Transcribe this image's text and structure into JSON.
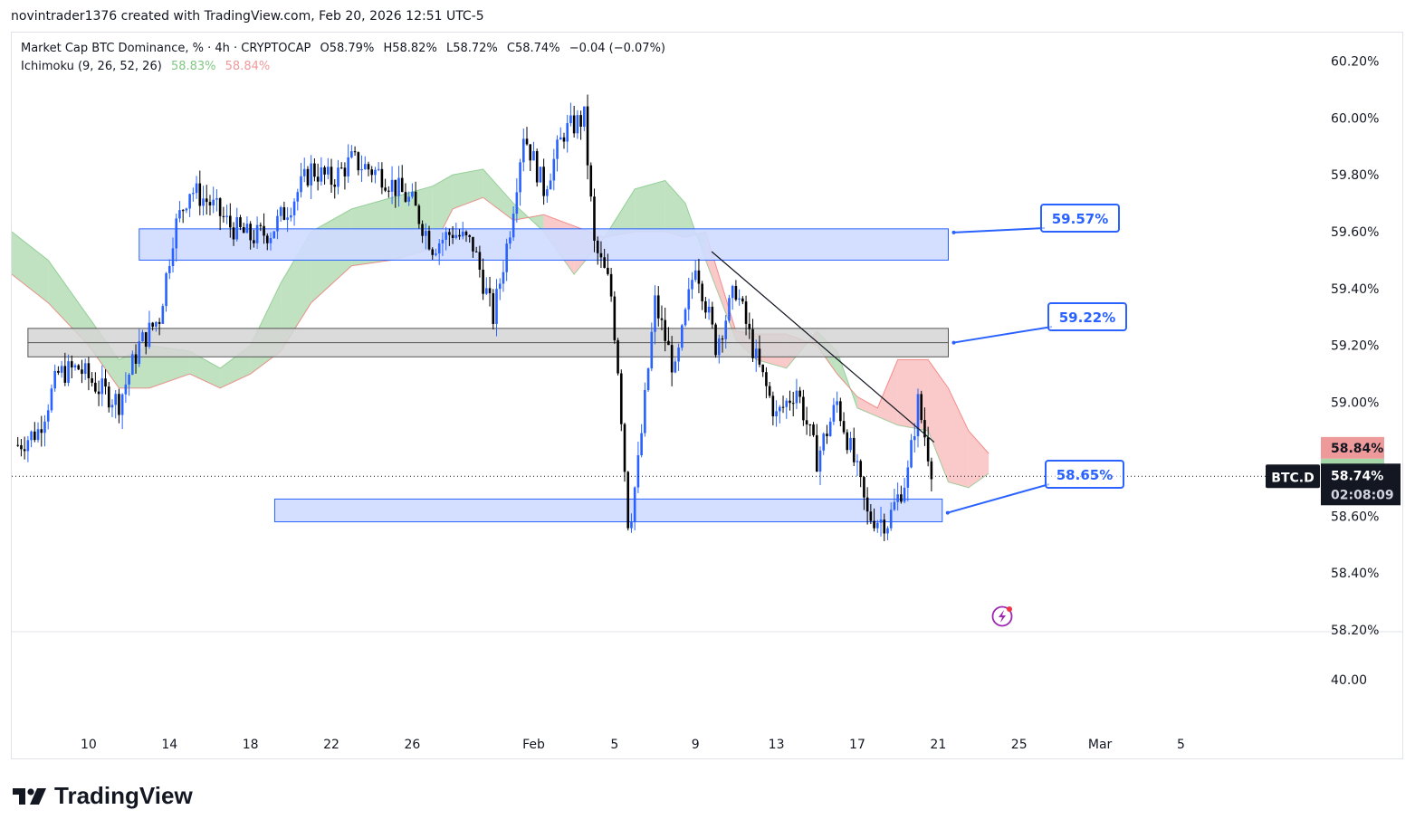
{
  "header": {
    "credit": "novintrader1376 created with TradingView.com, Feb 20, 2026 12:51 UTC-5"
  },
  "legend": {
    "symbol_line": "Market Cap BTC Dominance, % · 4h · CRYPTOCAP",
    "open": "O58.79%",
    "high": "H58.82%",
    "low": "L58.72%",
    "close": "C58.74%",
    "change": "−0.04 (−0.07%)",
    "indicator": "Ichimoku (9, 26, 52, 26)",
    "ich_value_a": "58.83%",
    "ich_value_b": "58.84%"
  },
  "brand": {
    "name": "TradingView"
  },
  "colors": {
    "bull": "#2962ff",
    "bear": "#000000",
    "cloud_bull": "#a5d6a7",
    "cloud_bear": "#f8b4b4",
    "zone_blue": "#cfdcff",
    "zone_gray": "#d5d5d5",
    "accent": "#2962ff"
  },
  "chart_data": {
    "type": "candlestick",
    "title": "Market Cap BTC Dominance, % · 4h · CRYPTOCAP",
    "ylim": [
      58.2,
      60.3
    ],
    "y_ticks": [
      "60.20%",
      "60.00%",
      "59.80%",
      "59.60%",
      "59.40%",
      "59.20%",
      "59.00%",
      "58.60%",
      "58.40%",
      "58.20%"
    ],
    "y_tick_values": [
      60.2,
      60.0,
      59.8,
      59.6,
      59.4,
      59.2,
      59.0,
      58.6,
      58.4,
      58.2
    ],
    "x_ticks": [
      "10",
      "14",
      "18",
      "22",
      "26",
      "Feb",
      "5",
      "9",
      "13",
      "17",
      "21",
      "25",
      "Mar",
      "5"
    ],
    "x_tick_days": [
      9,
      13,
      17,
      21,
      25,
      31,
      35,
      39,
      43,
      47,
      51,
      55,
      59,
      63
    ],
    "x_domain_days": [
      5.2,
      67.5
    ],
    "x_days_note": "days counted from Jan 1, 2026",
    "price_path": [
      [
        5.5,
        58.85
      ],
      [
        6.5,
        58.9
      ],
      [
        7.5,
        59.1
      ],
      [
        8.5,
        59.12
      ],
      [
        9.5,
        59.05
      ],
      [
        10.5,
        59.0
      ],
      [
        11.5,
        59.2
      ],
      [
        12.5,
        59.3
      ],
      [
        13.2,
        59.6
      ],
      [
        14.0,
        59.75
      ],
      [
        15.0,
        59.7
      ],
      [
        16.0,
        59.62
      ],
      [
        17.0,
        59.58
      ],
      [
        18.0,
        59.6
      ],
      [
        19.0,
        59.7
      ],
      [
        20.0,
        59.82
      ],
      [
        21.0,
        59.78
      ],
      [
        22.0,
        59.85
      ],
      [
        23.5,
        59.8
      ],
      [
        25.0,
        59.7
      ],
      [
        26.0,
        59.55
      ],
      [
        27.0,
        59.6
      ],
      [
        28.0,
        59.55
      ],
      [
        29.0,
        59.3
      ],
      [
        29.8,
        59.6
      ],
      [
        30.5,
        59.95
      ],
      [
        31.5,
        59.75
      ],
      [
        32.5,
        59.95
      ],
      [
        33.5,
        60.0
      ],
      [
        34.0,
        59.55
      ],
      [
        34.8,
        59.4
      ],
      [
        35.2,
        59.1
      ],
      [
        35.7,
        58.55
      ],
      [
        36.2,
        58.8
      ],
      [
        37.0,
        59.35
      ],
      [
        38.0,
        59.1
      ],
      [
        39.0,
        59.5
      ],
      [
        40.0,
        59.2
      ],
      [
        41.0,
        59.4
      ],
      [
        42.0,
        59.15
      ],
      [
        43.0,
        58.95
      ],
      [
        44.0,
        59.05
      ],
      [
        45.0,
        58.8
      ],
      [
        46.0,
        59.0
      ],
      [
        47.0,
        58.75
      ],
      [
        47.5,
        58.6
      ],
      [
        48.5,
        58.58
      ],
      [
        49.5,
        58.75
      ],
      [
        50.0,
        59.0
      ],
      [
        50.6,
        58.79
      ],
      [
        50.8,
        58.74
      ]
    ],
    "levels": [
      {
        "name": "upper-resistance-zone",
        "low": 59.5,
        "high": 59.61,
        "label": "59.57%",
        "from_day": 11.5,
        "to_day": 51.5
      },
      {
        "name": "mid-pivot-zone",
        "low": 59.16,
        "high": 59.26,
        "mid": 59.21,
        "label": "59.22%",
        "from_day": 6.0,
        "to_day": 51.5
      },
      {
        "name": "lower-support-zone",
        "low": 58.58,
        "high": 58.66,
        "label": "58.65%",
        "from_day": 18.2,
        "to_day": 51.2
      }
    ],
    "trendline": {
      "from": [
        39.8,
        59.53
      ],
      "to": [
        50.8,
        58.86
      ]
    },
    "last_value": {
      "symbol": "BTC.D",
      "value": 58.74,
      "value_label": "58.74%",
      "countdown": "02:08:09"
    },
    "ichimoku": {
      "params": "9, 26, 52, 26",
      "span_a_last": 58.83,
      "span_a_label": "58.83%",
      "span_b_last": 58.84,
      "span_b_label": "58.84%",
      "cloud": [
        [
          5.2,
          59.6,
          59.45
        ],
        [
          7.0,
          59.5,
          59.35
        ],
        [
          9.0,
          59.3,
          59.2
        ],
        [
          10.5,
          59.15,
          59.05
        ],
        [
          12.0,
          59.2,
          59.05
        ],
        [
          14.0,
          59.18,
          59.1
        ],
        [
          15.5,
          59.12,
          59.05
        ],
        [
          17.0,
          59.2,
          59.1
        ],
        [
          18.5,
          59.42,
          59.18
        ],
        [
          20.0,
          59.6,
          59.35
        ],
        [
          22.0,
          59.68,
          59.48
        ],
        [
          24.0,
          59.72,
          59.5
        ],
        [
          26.0,
          59.76,
          59.54
        ],
        [
          27.0,
          59.8,
          59.68
        ],
        [
          28.5,
          59.82,
          59.72
        ],
        [
          30.0,
          59.7,
          59.64
        ],
        [
          31.5,
          59.6,
          59.66
        ],
        [
          33.0,
          59.45,
          59.62
        ],
        [
          34.5,
          59.58,
          59.58
        ],
        [
          36.0,
          59.75,
          59.6
        ],
        [
          37.5,
          59.78,
          59.6
        ],
        [
          38.5,
          59.7,
          59.58
        ],
        [
          39.5,
          59.5,
          59.6
        ],
        [
          41.0,
          59.22,
          59.25
        ],
        [
          42.0,
          59.15,
          59.24
        ],
        [
          43.5,
          59.12,
          59.24
        ],
        [
          45.0,
          59.25,
          59.2
        ],
        [
          46.0,
          59.18,
          59.1
        ],
        [
          47.0,
          58.98,
          59.02
        ],
        [
          48.0,
          58.95,
          58.98
        ],
        [
          49.0,
          58.92,
          59.15
        ],
        [
          50.5,
          58.9,
          59.15
        ],
        [
          51.5,
          58.72,
          59.05
        ],
        [
          52.5,
          58.7,
          58.9
        ],
        [
          53.5,
          58.75,
          58.82
        ]
      ]
    }
  },
  "lower_pane": {
    "axis_label": "40.00"
  }
}
